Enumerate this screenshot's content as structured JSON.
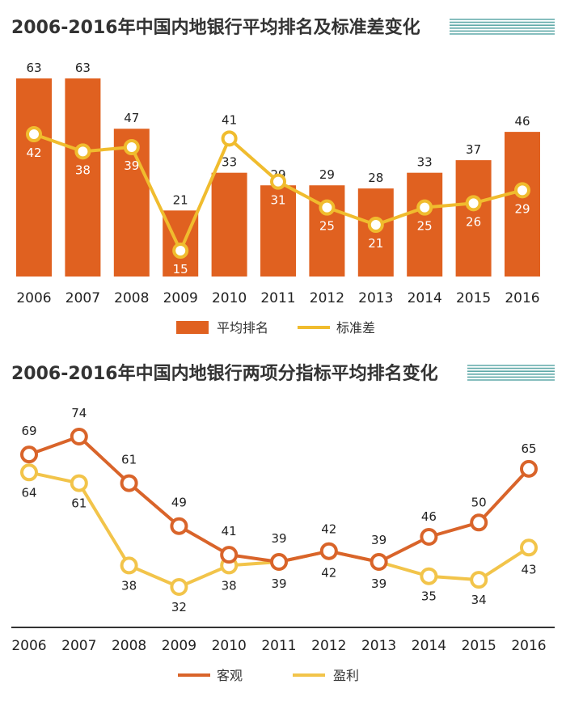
{
  "colors": {
    "bar": "#E06120",
    "std_line": "#F0BC2E",
    "objective_line": "#D9642A",
    "profit_line": "#F2C44A",
    "title": "#333333",
    "stripe": "#5FA9A8"
  },
  "chart_data": [
    {
      "type": "bar",
      "title": "2006-2016年中国内地银行平均排名及标准差变化",
      "categories": [
        "2006",
        "2007",
        "2008",
        "2009",
        "2010",
        "2011",
        "2012",
        "2013",
        "2014",
        "2015",
        "2016"
      ],
      "series": [
        {
          "name": "平均排名",
          "kind": "bar",
          "values": [
            63,
            63,
            47,
            21,
            33,
            29,
            29,
            28,
            33,
            37,
            46
          ]
        },
        {
          "name": "标准差",
          "kind": "line",
          "values": [
            42,
            38,
            39,
            15,
            41,
            31,
            25,
            21,
            25,
            26,
            29
          ]
        }
      ],
      "ylim": [
        0,
        70
      ],
      "grid": false,
      "legend": "bottom"
    },
    {
      "type": "line",
      "title": "2006-2016年中国内地银行两项分指标平均排名变化",
      "categories": [
        "2006",
        "2007",
        "2008",
        "2009",
        "2010",
        "2011",
        "2012",
        "2013",
        "2014",
        "2015",
        "2016"
      ],
      "series": [
        {
          "name": "客观",
          "values": [
            69,
            74,
            61,
            49,
            41,
            39,
            42,
            39,
            46,
            50,
            65
          ]
        },
        {
          "name": "盈利",
          "values": [
            64,
            61,
            38,
            32,
            38,
            39,
            42,
            39,
            35,
            34,
            43
          ]
        }
      ],
      "ylim": [
        25,
        80
      ],
      "grid": false,
      "legend": "bottom"
    }
  ]
}
